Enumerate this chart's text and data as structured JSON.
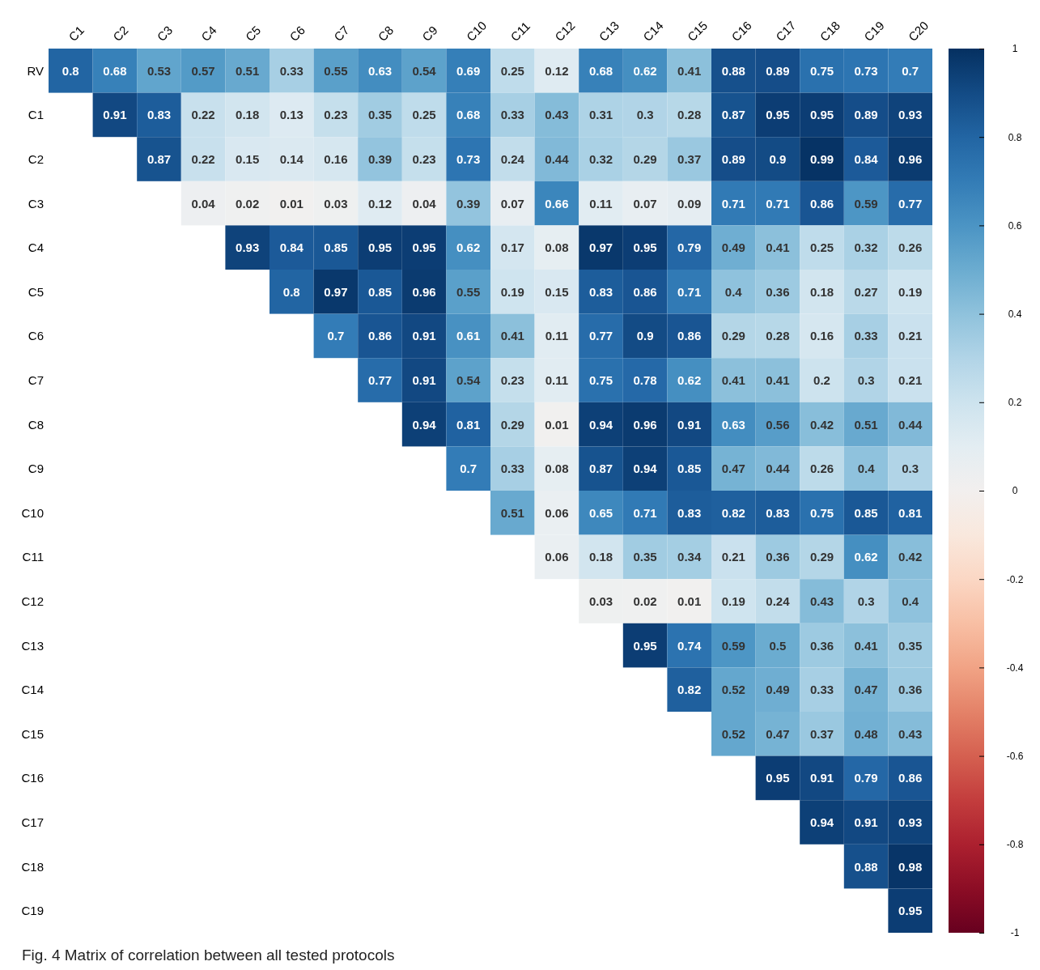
{
  "chart_data": {
    "type": "heatmap",
    "title": "Fig. 4 Matrix of correlation between all tested protocols",
    "categories": [
      "C1",
      "C2",
      "C3",
      "C4",
      "C5",
      "C6",
      "C7",
      "C8",
      "C9",
      "C10",
      "C11",
      "C12",
      "C13",
      "C14",
      "C15",
      "C16",
      "C17",
      "C18",
      "C19",
      "C20"
    ],
    "y_categories": [
      "RV",
      "C1",
      "C2",
      "C3",
      "C4",
      "C5",
      "C6",
      "C7",
      "C8",
      "C9",
      "C10",
      "C11",
      "C12",
      "C13",
      "C14",
      "C15",
      "C16",
      "C17",
      "C18",
      "C19"
    ],
    "cells": [
      [
        0.8,
        0.68,
        0.53,
        0.57,
        0.51,
        0.33,
        0.55,
        0.63,
        0.54,
        0.69,
        0.25,
        0.12,
        0.68,
        0.62,
        0.41,
        0.88,
        0.89,
        0.75,
        0.73,
        0.7
      ],
      [
        null,
        0.91,
        0.83,
        0.22,
        0.18,
        0.13,
        0.23,
        0.35,
        0.25,
        0.68,
        0.33,
        0.43,
        0.31,
        0.3,
        0.28,
        0.87,
        0.95,
        0.95,
        0.89,
        0.93
      ],
      [
        null,
        null,
        0.87,
        0.22,
        0.15,
        0.14,
        0.16,
        0.39,
        0.23,
        0.73,
        0.24,
        0.44,
        0.32,
        0.29,
        0.37,
        0.89,
        0.9,
        0.99,
        0.84,
        0.96
      ],
      [
        null,
        null,
        null,
        0.04,
        0.02,
        0.01,
        0.03,
        0.12,
        0.04,
        0.39,
        0.07,
        0.66,
        0.11,
        0.07,
        0.09,
        0.71,
        0.71,
        0.86,
        0.59,
        0.77
      ],
      [
        null,
        null,
        null,
        null,
        0.93,
        0.84,
        0.85,
        0.95,
        0.95,
        0.62,
        0.17,
        0.08,
        0.97,
        0.95,
        0.79,
        0.49,
        0.41,
        0.25,
        0.32,
        0.26
      ],
      [
        null,
        null,
        null,
        null,
        null,
        0.8,
        0.97,
        0.85,
        0.96,
        0.55,
        0.19,
        0.15,
        0.83,
        0.86,
        0.71,
        0.4,
        0.36,
        0.18,
        0.27,
        0.19
      ],
      [
        null,
        null,
        null,
        null,
        null,
        null,
        0.7,
        0.86,
        0.91,
        0.61,
        0.41,
        0.11,
        0.77,
        0.9,
        0.86,
        0.29,
        0.28,
        0.16,
        0.33,
        0.21
      ],
      [
        null,
        null,
        null,
        null,
        null,
        null,
        null,
        0.77,
        0.91,
        0.54,
        0.23,
        0.11,
        0.75,
        0.78,
        0.62,
        0.41,
        0.41,
        0.2,
        0.3,
        0.21
      ],
      [
        null,
        null,
        null,
        null,
        null,
        null,
        null,
        null,
        0.94,
        0.81,
        0.29,
        0.01,
        0.94,
        0.96,
        0.91,
        0.63,
        0.56,
        0.42,
        0.51,
        0.44
      ],
      [
        null,
        null,
        null,
        null,
        null,
        null,
        null,
        null,
        null,
        0.7,
        0.33,
        0.08,
        0.87,
        0.94,
        0.85,
        0.47,
        0.44,
        0.26,
        0.4,
        0.3
      ],
      [
        null,
        null,
        null,
        null,
        null,
        null,
        null,
        null,
        null,
        null,
        0.51,
        0.06,
        0.65,
        0.71,
        0.83,
        0.82,
        0.83,
        0.75,
        0.85,
        0.81
      ],
      [
        null,
        null,
        null,
        null,
        null,
        null,
        null,
        null,
        null,
        null,
        null,
        0.06,
        0.18,
        0.35,
        0.34,
        0.21,
        0.36,
        0.29,
        0.62,
        0.42
      ],
      [
        null,
        null,
        null,
        null,
        null,
        null,
        null,
        null,
        null,
        null,
        null,
        null,
        0.03,
        0.02,
        0.01,
        0.19,
        0.24,
        0.43,
        0.3,
        0.4
      ],
      [
        null,
        null,
        null,
        null,
        null,
        null,
        null,
        null,
        null,
        null,
        null,
        null,
        null,
        0.95,
        0.74,
        0.59,
        0.5,
        0.36,
        0.41,
        0.35
      ],
      [
        null,
        null,
        null,
        null,
        null,
        null,
        null,
        null,
        null,
        null,
        null,
        null,
        null,
        null,
        0.82,
        0.52,
        0.49,
        0.33,
        0.47,
        0.36
      ],
      [
        null,
        null,
        null,
        null,
        null,
        null,
        null,
        null,
        null,
        null,
        null,
        null,
        null,
        null,
        null,
        0.52,
        0.47,
        0.37,
        0.48,
        0.43
      ],
      [
        null,
        null,
        null,
        null,
        null,
        null,
        null,
        null,
        null,
        null,
        null,
        null,
        null,
        null,
        null,
        null,
        0.95,
        0.91,
        0.79,
        0.86
      ],
      [
        null,
        null,
        null,
        null,
        null,
        null,
        null,
        null,
        null,
        null,
        null,
        null,
        null,
        null,
        null,
        null,
        null,
        0.94,
        0.91,
        0.93
      ],
      [
        null,
        null,
        null,
        null,
        null,
        null,
        null,
        null,
        null,
        null,
        null,
        null,
        null,
        null,
        null,
        null,
        null,
        null,
        0.88,
        0.98
      ],
      [
        null,
        null,
        null,
        null,
        null,
        null,
        null,
        null,
        null,
        null,
        null,
        null,
        null,
        null,
        null,
        null,
        null,
        null,
        null,
        0.95
      ]
    ],
    "data_labels": true,
    "clim": [
      -1,
      1
    ],
    "cticks": [
      -1,
      -0.8,
      -0.6,
      -0.4,
      -0.2,
      0,
      0.2,
      0.4,
      0.6,
      0.8,
      1
    ]
  }
}
